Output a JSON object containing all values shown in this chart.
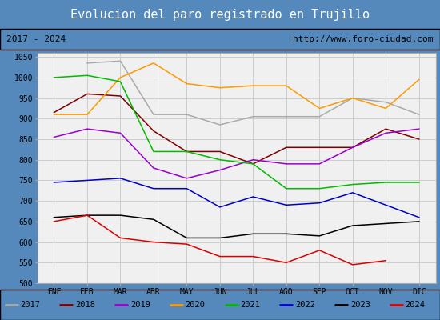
{
  "title": "Evolucion del paro registrado en Trujillo",
  "subtitle_left": "2017 - 2024",
  "subtitle_right": "http://www.foro-ciudad.com",
  "months": [
    "ENE",
    "FEB",
    "MAR",
    "ABR",
    "MAY",
    "JUN",
    "JUL",
    "AGO",
    "SEP",
    "OCT",
    "NOV",
    "DIC"
  ],
  "ylim": [
    500,
    1060
  ],
  "yticks": [
    500,
    550,
    600,
    650,
    700,
    750,
    800,
    850,
    900,
    950,
    1000,
    1050
  ],
  "series": {
    "2017": {
      "color": "#aaaaaa",
      "data": [
        null,
        1035,
        1040,
        910,
        910,
        885,
        905,
        905,
        905,
        950,
        940,
        910
      ]
    },
    "2018": {
      "color": "#800000",
      "data": [
        915,
        960,
        955,
        870,
        820,
        820,
        790,
        830,
        830,
        830,
        875,
        850
      ]
    },
    "2019": {
      "color": "#9900cc",
      "data": [
        855,
        875,
        865,
        780,
        755,
        775,
        800,
        790,
        790,
        830,
        865,
        875
      ]
    },
    "2020": {
      "color": "#ff9900",
      "data": [
        910,
        910,
        1000,
        1035,
        985,
        975,
        980,
        980,
        925,
        950,
        925,
        995
      ]
    },
    "2021": {
      "color": "#00bb00",
      "data": [
        1000,
        1005,
        990,
        820,
        820,
        800,
        790,
        730,
        730,
        740,
        745,
        745
      ]
    },
    "2022": {
      "color": "#0000cc",
      "data": [
        745,
        750,
        755,
        730,
        730,
        685,
        710,
        690,
        695,
        720,
        690,
        660
      ]
    },
    "2023": {
      "color": "#000000",
      "data": [
        660,
        665,
        665,
        655,
        610,
        610,
        620,
        620,
        615,
        640,
        645,
        650
      ]
    },
    "2024": {
      "color": "#dd0000",
      "data": [
        650,
        665,
        610,
        600,
        595,
        565,
        565,
        550,
        580,
        545,
        555,
        null
      ]
    }
  },
  "bg_color": "#f0f0f0",
  "title_bg": "#4d8fcc",
  "title_color": "white",
  "subtitle_bg": "#d8d8d8",
  "outer_bg": "#5588bb",
  "grid_color": "#cccccc"
}
